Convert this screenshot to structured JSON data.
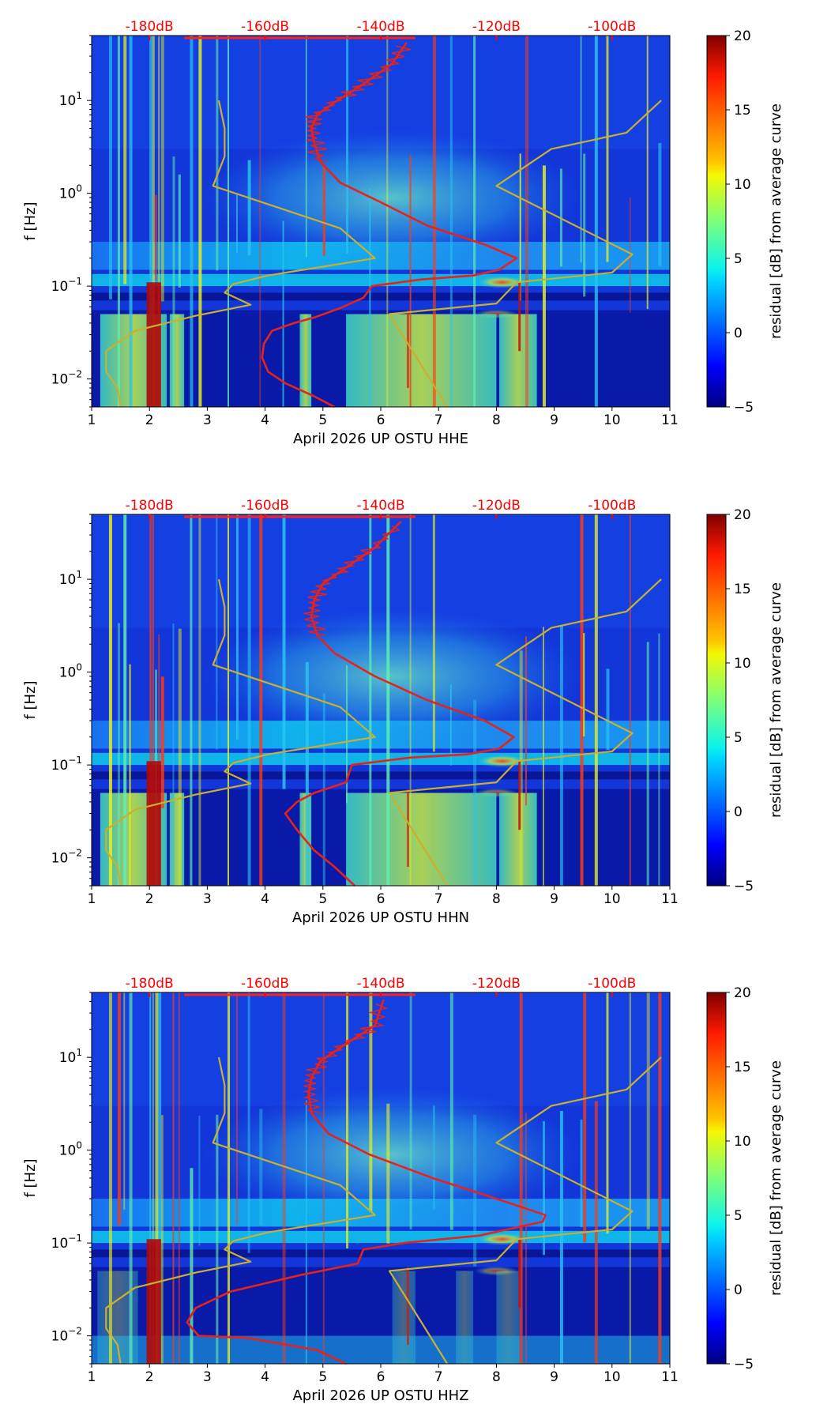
{
  "chart_data": [
    {
      "type": "heatmap",
      "title": "",
      "xlabel": "April 2026 UP OSTU  HHE",
      "ylabel": "f [Hz]",
      "x_ticks": [
        1,
        2,
        3,
        4,
        5,
        6,
        7,
        8,
        9,
        10,
        11
      ],
      "xlim": [
        1,
        11
      ],
      "y_scale": "log",
      "ylim": [
        0.005,
        50
      ],
      "y_ticks": [
        {
          "value": 0.01,
          "base": "10",
          "exp": "−2"
        },
        {
          "value": 0.1,
          "base": "10",
          "exp": "−1"
        },
        {
          "value": 1,
          "base": "10",
          "exp": "0"
        },
        {
          "value": 10,
          "base": "10",
          "exp": "1"
        }
      ],
      "top_axis_ticks": [
        {
          "x": 2,
          "label": "-180dB"
        },
        {
          "x": 4,
          "label": "-160dB"
        },
        {
          "x": 6,
          "label": "-140dB"
        },
        {
          "x": 8,
          "label": "-120dB"
        },
        {
          "x": 10,
          "label": "-100dB"
        }
      ],
      "colorbar": {
        "label": "residual [dB] from average curve",
        "range": [
          -5,
          20
        ],
        "ticks": [
          -5,
          0,
          5,
          10,
          15,
          20
        ]
      },
      "series": [
        {
          "name": "average PSD curve",
          "color": "#e8221a",
          "points": [
            [
              5.2,
              0.005
            ],
            [
              4.85,
              0.0065
            ],
            [
              4.35,
              0.009
            ],
            [
              4.05,
              0.012
            ],
            [
              3.95,
              0.017
            ],
            [
              3.98,
              0.024
            ],
            [
              4.12,
              0.033
            ],
            [
              4.5,
              0.04
            ],
            [
              4.85,
              0.046
            ],
            [
              5.3,
              0.058
            ],
            [
              5.7,
              0.075
            ],
            [
              5.85,
              0.1
            ],
            [
              6.7,
              0.118
            ],
            [
              7.6,
              0.13
            ],
            [
              8.05,
              0.15
            ],
            [
              8.35,
              0.2
            ],
            [
              7.8,
              0.28
            ],
            [
              6.8,
              0.45
            ],
            [
              6.0,
              0.8
            ],
            [
              5.3,
              1.3
            ],
            [
              4.95,
              2.2
            ],
            [
              4.85,
              3.5
            ],
            [
              4.8,
              5
            ],
            [
              4.9,
              7
            ],
            [
              5.25,
              10
            ],
            [
              5.7,
              15
            ],
            [
              6.2,
              25
            ],
            [
              6.45,
              42
            ]
          ]
        },
        {
          "name": "low noise model",
          "color": "#c8b030",
          "points": [
            [
              1.5,
              0.005
            ],
            [
              1.45,
              0.008
            ],
            [
              1.25,
              0.012
            ],
            [
              1.25,
              0.02
            ],
            [
              1.75,
              0.033
            ],
            [
              2.8,
              0.048
            ],
            [
              3.75,
              0.063
            ],
            [
              3.3,
              0.085
            ],
            [
              3.45,
              0.105
            ],
            [
              4.05,
              0.13
            ],
            [
              5.9,
              0.2
            ],
            [
              5.3,
              0.42
            ],
            [
              3.1,
              1.2
            ],
            [
              3.3,
              2.5
            ],
            [
              3.3,
              5
            ],
            [
              3.2,
              10
            ]
          ]
        },
        {
          "name": "high noise model",
          "color": "#c8b030",
          "points": [
            [
              7.15,
              0.005
            ],
            [
              6.15,
              0.05
            ],
            [
              8.0,
              0.065
            ],
            [
              8.35,
              0.11
            ],
            [
              10.0,
              0.14
            ],
            [
              10.35,
              0.22
            ],
            [
              8.0,
              1.2
            ],
            [
              8.95,
              3.0
            ],
            [
              10.25,
              4.5
            ],
            [
              10.85,
              10
            ]
          ]
        }
      ]
    },
    {
      "type": "heatmap",
      "title": "",
      "xlabel": "April 2026 UP OSTU  HHN",
      "ylabel": "f [Hz]",
      "x_ticks": [
        1,
        2,
        3,
        4,
        5,
        6,
        7,
        8,
        9,
        10,
        11
      ],
      "xlim": [
        1,
        11
      ],
      "y_scale": "log",
      "ylim": [
        0.005,
        50
      ],
      "y_ticks": [
        {
          "value": 0.01,
          "base": "10",
          "exp": "−2"
        },
        {
          "value": 0.1,
          "base": "10",
          "exp": "−1"
        },
        {
          "value": 1,
          "base": "10",
          "exp": "0"
        },
        {
          "value": 10,
          "base": "10",
          "exp": "1"
        }
      ],
      "top_axis_ticks": [
        {
          "x": 2,
          "label": "-180dB"
        },
        {
          "x": 4,
          "label": "-160dB"
        },
        {
          "x": 6,
          "label": "-140dB"
        },
        {
          "x": 8,
          "label": "-120dB"
        },
        {
          "x": 10,
          "label": "-100dB"
        }
      ],
      "colorbar": {
        "label": "residual [dB] from average curve",
        "range": [
          -5,
          20
        ],
        "ticks": [
          -5,
          0,
          5,
          10,
          15,
          20
        ]
      },
      "series": [
        {
          "name": "average PSD curve",
          "color": "#e8221a",
          "points": [
            [
              5.55,
              0.005
            ],
            [
              5.2,
              0.008
            ],
            [
              4.85,
              0.012
            ],
            [
              4.55,
              0.02
            ],
            [
              4.35,
              0.03
            ],
            [
              4.55,
              0.04
            ],
            [
              4.85,
              0.05
            ],
            [
              5.4,
              0.065
            ],
            [
              5.5,
              0.1
            ],
            [
              6.5,
              0.12
            ],
            [
              7.5,
              0.13
            ],
            [
              8.05,
              0.15
            ],
            [
              8.3,
              0.2
            ],
            [
              7.8,
              0.3
            ],
            [
              6.8,
              0.5
            ],
            [
              5.9,
              0.9
            ],
            [
              5.2,
              1.6
            ],
            [
              4.9,
              2.5
            ],
            [
              4.8,
              4
            ],
            [
              4.85,
              6
            ],
            [
              5.0,
              9
            ],
            [
              5.45,
              14
            ],
            [
              5.9,
              22
            ],
            [
              6.35,
              42
            ]
          ]
        },
        {
          "name": "low noise model",
          "color": "#c8b030",
          "points": [
            [
              1.5,
              0.005
            ],
            [
              1.45,
              0.008
            ],
            [
              1.25,
              0.012
            ],
            [
              1.25,
              0.02
            ],
            [
              1.75,
              0.033
            ],
            [
              2.8,
              0.048
            ],
            [
              3.75,
              0.063
            ],
            [
              3.3,
              0.085
            ],
            [
              3.45,
              0.105
            ],
            [
              4.05,
              0.13
            ],
            [
              5.9,
              0.2
            ],
            [
              5.3,
              0.42
            ],
            [
              3.1,
              1.2
            ],
            [
              3.3,
              2.5
            ],
            [
              3.3,
              5
            ],
            [
              3.2,
              10
            ]
          ]
        },
        {
          "name": "high noise model",
          "color": "#c8b030",
          "points": [
            [
              7.15,
              0.005
            ],
            [
              6.15,
              0.05
            ],
            [
              8.0,
              0.065
            ],
            [
              8.35,
              0.11
            ],
            [
              10.0,
              0.14
            ],
            [
              10.35,
              0.22
            ],
            [
              8.0,
              1.2
            ],
            [
              8.95,
              3.0
            ],
            [
              10.25,
              4.5
            ],
            [
              10.85,
              10
            ]
          ]
        }
      ]
    },
    {
      "type": "heatmap",
      "title": "",
      "xlabel": "April 2026 UP OSTU  HHZ",
      "ylabel": "f [Hz]",
      "x_ticks": [
        1,
        2,
        3,
        4,
        5,
        6,
        7,
        8,
        9,
        10,
        11
      ],
      "xlim": [
        1,
        11
      ],
      "y_scale": "log",
      "ylim": [
        0.005,
        50
      ],
      "y_ticks": [
        {
          "value": 0.01,
          "base": "10",
          "exp": "−2"
        },
        {
          "value": 0.1,
          "base": "10",
          "exp": "−1"
        },
        {
          "value": 1,
          "base": "10",
          "exp": "0"
        },
        {
          "value": 10,
          "base": "10",
          "exp": "1"
        }
      ],
      "top_axis_ticks": [
        {
          "x": 2,
          "label": "-180dB"
        },
        {
          "x": 4,
          "label": "-160dB"
        },
        {
          "x": 6,
          "label": "-140dB"
        },
        {
          "x": 8,
          "label": "-120dB"
        },
        {
          "x": 10,
          "label": "-100dB"
        }
      ],
      "colorbar": {
        "label": "residual [dB] from average curve",
        "range": [
          -5,
          20
        ],
        "ticks": [
          -5,
          0,
          5,
          10,
          15,
          20
        ]
      },
      "series": [
        {
          "name": "average PSD curve",
          "color": "#e8221a",
          "points": [
            [
              5.4,
              0.005
            ],
            [
              4.9,
              0.007
            ],
            [
              3.7,
              0.0095
            ],
            [
              2.85,
              0.01
            ],
            [
              2.65,
              0.014
            ],
            [
              2.8,
              0.02
            ],
            [
              3.4,
              0.03
            ],
            [
              4.6,
              0.045
            ],
            [
              5.6,
              0.06
            ],
            [
              5.7,
              0.085
            ],
            [
              6.4,
              0.1
            ],
            [
              7.7,
              0.12
            ],
            [
              8.8,
              0.17
            ],
            [
              8.85,
              0.2
            ],
            [
              8.0,
              0.3
            ],
            [
              6.9,
              0.5
            ],
            [
              5.8,
              0.9
            ],
            [
              5.1,
              1.5
            ],
            [
              4.8,
              2.5
            ],
            [
              4.75,
              4
            ],
            [
              4.8,
              6
            ],
            [
              4.95,
              9
            ],
            [
              5.4,
              14
            ],
            [
              5.9,
              22
            ],
            [
              6.05,
              42
            ]
          ]
        },
        {
          "name": "low noise model",
          "color": "#c8b030",
          "points": [
            [
              1.5,
              0.005
            ],
            [
              1.45,
              0.008
            ],
            [
              1.25,
              0.012
            ],
            [
              1.25,
              0.02
            ],
            [
              1.75,
              0.033
            ],
            [
              2.8,
              0.048
            ],
            [
              3.75,
              0.063
            ],
            [
              3.3,
              0.085
            ],
            [
              3.45,
              0.105
            ],
            [
              4.05,
              0.13
            ],
            [
              5.9,
              0.2
            ],
            [
              5.3,
              0.42
            ],
            [
              3.1,
              1.2
            ],
            [
              3.3,
              2.5
            ],
            [
              3.3,
              5
            ],
            [
              3.2,
              10
            ]
          ]
        },
        {
          "name": "high noise model",
          "color": "#c8b030",
          "points": [
            [
              7.15,
              0.005
            ],
            [
              6.15,
              0.05
            ],
            [
              8.0,
              0.065
            ],
            [
              8.35,
              0.11
            ],
            [
              10.0,
              0.14
            ],
            [
              10.35,
              0.22
            ],
            [
              8.0,
              1.2
            ],
            [
              8.95,
              3.0
            ],
            [
              10.25,
              4.5
            ],
            [
              10.85,
              10
            ]
          ]
        }
      ]
    }
  ]
}
